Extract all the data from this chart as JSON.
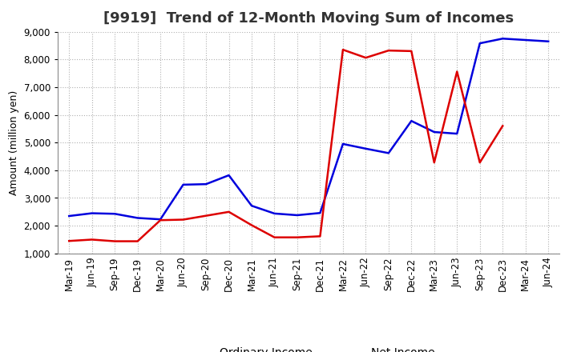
{
  "title": "[9919]  Trend of 12-Month Moving Sum of Incomes",
  "ylabel": "Amount (million yen)",
  "background_color": "#ffffff",
  "grid_color": "#b0b0b0",
  "x_labels": [
    "Mar-19",
    "Jun-19",
    "Sep-19",
    "Dec-19",
    "Mar-20",
    "Jun-20",
    "Sep-20",
    "Dec-20",
    "Mar-21",
    "Jun-21",
    "Sep-21",
    "Dec-21",
    "Mar-22",
    "Jun-22",
    "Sep-22",
    "Dec-22",
    "Mar-23",
    "Jun-23",
    "Sep-23",
    "Dec-23",
    "Mar-24",
    "Jun-24"
  ],
  "ordinary_income": [
    2350,
    2450,
    2430,
    2280,
    2230,
    3480,
    3500,
    3820,
    2720,
    2440,
    2380,
    2460,
    4950,
    4780,
    4620,
    5780,
    5380,
    5320,
    8580,
    8750,
    8700,
    8650
  ],
  "net_income": [
    1450,
    1500,
    1440,
    1440,
    2200,
    2220,
    2360,
    2500,
    2020,
    1580,
    1580,
    1620,
    8350,
    8060,
    8320,
    8300,
    4280,
    7560,
    4280,
    5600,
    null,
    null
  ],
  "ordinary_color": "#0000dd",
  "net_color": "#dd0000",
  "ylim_min": 1000,
  "ylim_max": 9000,
  "yticks": [
    1000,
    2000,
    3000,
    4000,
    5000,
    6000,
    7000,
    8000,
    9000
  ],
  "line_width": 1.8,
  "title_fontsize": 13,
  "title_color": "#333333",
  "axis_label_fontsize": 9,
  "tick_fontsize": 8.5,
  "legend_fontsize": 10
}
